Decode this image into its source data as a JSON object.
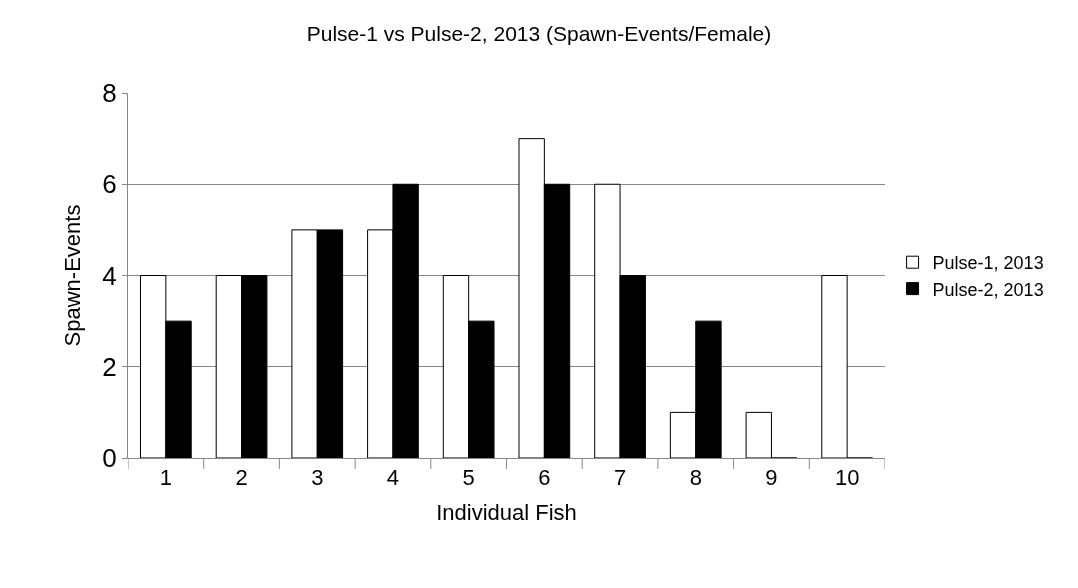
{
  "chart_data": {
    "type": "bar",
    "title": "Pulse-1 vs Pulse-2, 2013 (Spawn-Events/Female)",
    "xlabel": "Individual Fish",
    "ylabel": "Spawn-Events",
    "categories": [
      "1",
      "2",
      "3",
      "4",
      "5",
      "6",
      "7",
      "8",
      "9",
      "10"
    ],
    "series": [
      {
        "name": "Pulse-1, 2013",
        "color": "#ffffff",
        "values": [
          4,
          4,
          5,
          5,
          4,
          7,
          6,
          1,
          1,
          4
        ]
      },
      {
        "name": "Pulse-2, 2013",
        "color": "#000000",
        "values": [
          3,
          4,
          5,
          6,
          3,
          6,
          4,
          3,
          0,
          0
        ]
      }
    ],
    "ylim": [
      0,
      8
    ],
    "yticks": [
      0,
      2,
      4,
      6,
      8
    ],
    "grid": "y",
    "legend": "right"
  }
}
